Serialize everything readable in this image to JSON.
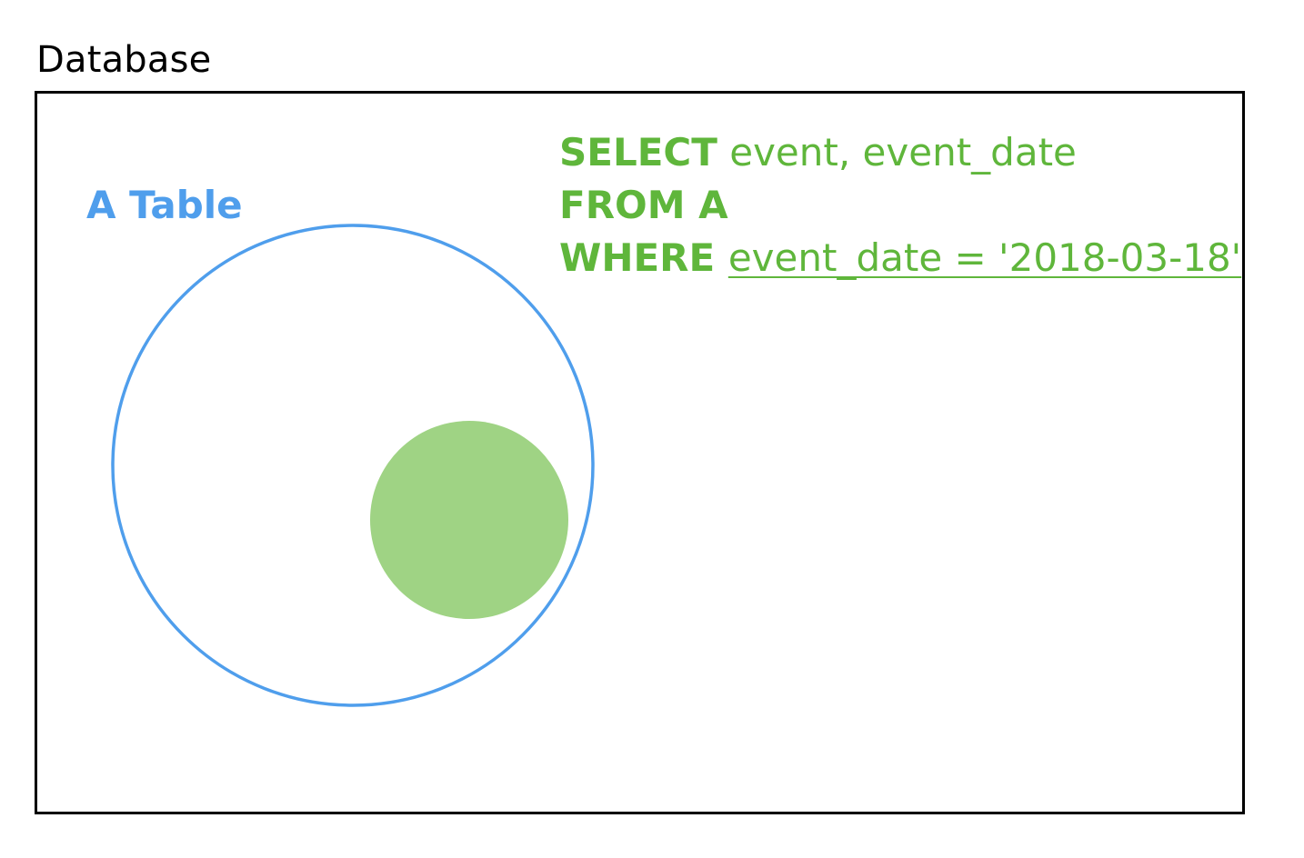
{
  "database": {
    "title": "Database"
  },
  "table": {
    "label": "A Table"
  },
  "query": {
    "select_keyword": "SELECT",
    "select_columns": " event, event_date",
    "from_keyword": "FROM",
    "from_table": " A",
    "where_keyword": "WHERE",
    "where_condition": "event_date = '2018-03-18'"
  },
  "colors": {
    "table_blue": "#4f9eec",
    "subset_green": "#9fd384",
    "sql_green": "#5fb63b",
    "frame_black": "#000000"
  }
}
